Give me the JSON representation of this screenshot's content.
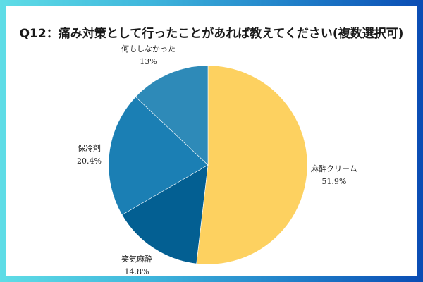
{
  "title": "Q12：痛み対策として行ったことがあれば教えてください(複数選択可)",
  "colors": {
    "border_gradient_start": "#5fdde6",
    "border_gradient_end": "#0a4cb4",
    "slice_1": "#fdd160",
    "slice_2": "#035f92",
    "slice_3": "#1b7fb4",
    "slice_4": "#2e8ab8"
  },
  "labels": [
    {
      "name": "麻酔クリーム",
      "pct": "51.9%"
    },
    {
      "name": "笑気麻酔",
      "pct": "14.8%"
    },
    {
      "name": "保冷剤",
      "pct": "20.4%"
    },
    {
      "name": "何もしなかった",
      "pct": "13%"
    }
  ],
  "chart_data": {
    "type": "pie",
    "title": "Q12：痛み対策として行ったことがあれば教えてください(複数選択可)",
    "categories": [
      "麻酔クリーム",
      "笑気麻酔",
      "保冷剤",
      "何もしなかった"
    ],
    "values": [
      51.9,
      14.8,
      20.4,
      13.0
    ],
    "value_labels": [
      "51.9%",
      "14.8%",
      "20.4%",
      "13%"
    ],
    "start_angle": "12 o'clock, clockwise",
    "colors": [
      "#fdd160",
      "#035f92",
      "#1b7fb4",
      "#2e8ab8"
    ],
    "legend": "none (labels placed outside slices)"
  }
}
